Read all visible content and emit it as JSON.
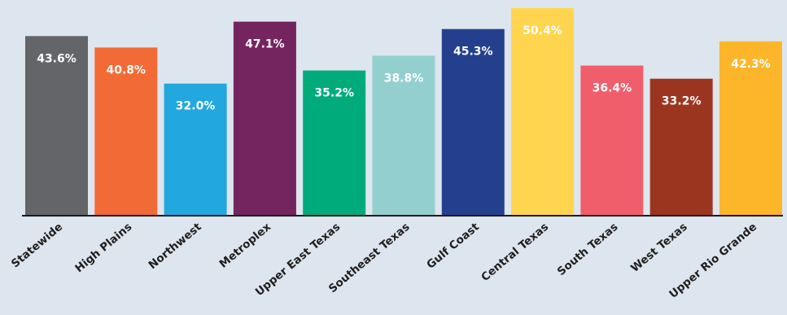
{
  "chart_data": {
    "type": "bar",
    "categories": [
      "Statewide",
      "High Plains",
      "Northwest",
      "Metroplex",
      "Upper East Texas",
      "Southeast Texas",
      "Gulf Coast",
      "Central Texas",
      "South Texas",
      "West Texas",
      "Upper Rio Grande"
    ],
    "values": [
      43.6,
      40.8,
      32.0,
      47.1,
      35.2,
      38.8,
      45.3,
      50.4,
      36.4,
      33.2,
      42.3
    ],
    "data_labels": [
      "43.6%",
      "40.8%",
      "32.0%",
      "47.1%",
      "35.2%",
      "38.8%",
      "45.3%",
      "50.4%",
      "36.4%",
      "33.2%",
      "42.3%"
    ],
    "colors": [
      "#636569",
      "#f26a36",
      "#22a8df",
      "#74245f",
      "#00ab7b",
      "#93cfcf",
      "#243f8d",
      "#ffd54f",
      "#f15e6b",
      "#9c3520",
      "#fdb62a"
    ],
    "label_color": "#ffffff",
    "label_color_light_bars": "#ffffff",
    "axis_color": "#1a1a1a",
    "background": "#dde5ee",
    "title": "",
    "xlabel": "",
    "ylabel": "",
    "ylim": [
      0,
      50.4
    ],
    "grid": false,
    "legend": "none"
  }
}
